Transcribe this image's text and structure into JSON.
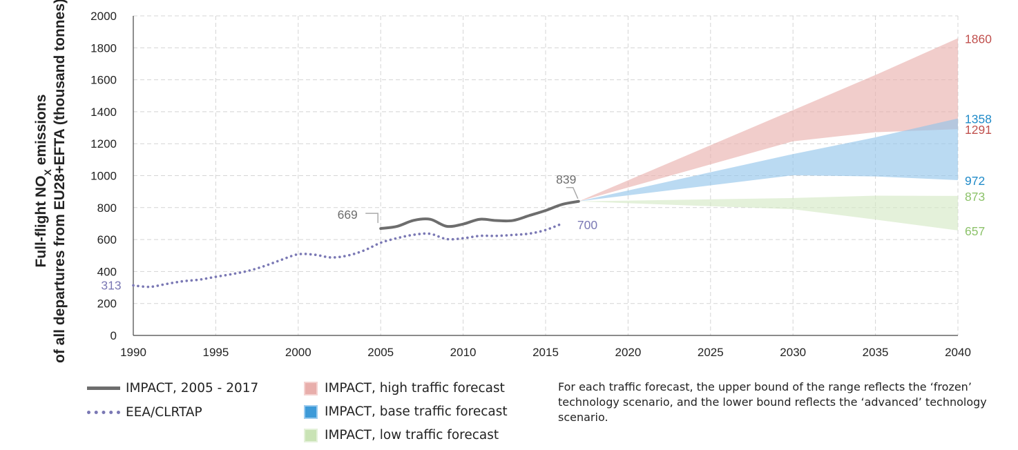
{
  "chart_data": {
    "type": "area",
    "title": "",
    "ylabel_line1": "Full-flight NO",
    "ylabel_sub": "X",
    "ylabel_line1_suffix": " emissions",
    "ylabel_line2": "of all departures from EU28+EFTA (thousand tonnes)",
    "xlim": [
      1990,
      2040
    ],
    "ylim": [
      0,
      2000
    ],
    "xticks": [
      1990,
      1995,
      2000,
      2005,
      2010,
      2015,
      2020,
      2025,
      2030,
      2035,
      2040
    ],
    "yticks": [
      0,
      200,
      400,
      600,
      800,
      1000,
      1200,
      1400,
      1600,
      1800,
      2000
    ],
    "grid": true,
    "series": [
      {
        "name": "IMPACT, 2005 - 2017",
        "kind": "solid-line",
        "color": "#6d6d6d",
        "x": [
          2005,
          2006,
          2007,
          2008,
          2009,
          2010,
          2011,
          2012,
          2013,
          2014,
          2015,
          2016,
          2017
        ],
        "y": [
          669,
          683,
          720,
          727,
          683,
          697,
          727,
          719,
          719,
          750,
          782,
          820,
          839
        ]
      },
      {
        "name": "EEA/CLRTAP",
        "kind": "dotted-line",
        "color": "#7a78b4",
        "x": [
          1990,
          1991,
          1992,
          1993,
          1994,
          1995,
          1996,
          1997,
          1998,
          1999,
          2000,
          2001,
          2002,
          2003,
          2004,
          2005,
          2006,
          2007,
          2008,
          2009,
          2010,
          2011,
          2012,
          2013,
          2014,
          2015,
          2016
        ],
        "y": [
          313,
          304,
          322,
          339,
          349,
          367,
          384,
          405,
          436,
          474,
          508,
          505,
          488,
          500,
          532,
          580,
          609,
          630,
          636,
          603,
          608,
          623,
          623,
          629,
          637,
          660,
          700
        ]
      }
    ],
    "bands": [
      {
        "name": "IMPACT, high traffic forecast",
        "color": "#e8aeab",
        "x": [
          2017,
          2030,
          2035,
          2040
        ],
        "upper": [
          839,
          1410,
          1630,
          1860
        ],
        "lower": [
          839,
          1215,
          1272,
          1291
        ]
      },
      {
        "name": "IMPACT, base traffic forecast",
        "color": "#8fc3ea",
        "x": [
          2017,
          2030,
          2035,
          2040
        ],
        "upper": [
          839,
          1135,
          1240,
          1358
        ],
        "lower": [
          839,
          1002,
          995,
          972
        ]
      },
      {
        "name": "IMPACT, low traffic forecast",
        "color": "#d3e8c3",
        "x": [
          2017,
          2030,
          2035,
          2040
        ],
        "upper": [
          839,
          860,
          875,
          873
        ],
        "lower": [
          839,
          790,
          725,
          657
        ]
      }
    ],
    "annotations": [
      {
        "text": "669",
        "x": 2005,
        "y": 669,
        "color": "#6d6d6d"
      },
      {
        "text": "839",
        "x": 2017,
        "y": 839,
        "color": "#6d6d6d"
      },
      {
        "text": "700",
        "x": 2016,
        "y": 700,
        "color": "#7a78b4"
      },
      {
        "text": "313",
        "x": 1990,
        "y": 313,
        "color": "#7a78b4"
      },
      {
        "text": "1860",
        "x": 2040,
        "y": 1860,
        "color": "#c0504d"
      },
      {
        "text": "1358",
        "x": 2040,
        "y": 1358,
        "color": "#1f8ac8"
      },
      {
        "text": "1291",
        "x": 2040,
        "y": 1291,
        "color": "#c0504d"
      },
      {
        "text": "972",
        "x": 2040,
        "y": 972,
        "color": "#1f8ac8"
      },
      {
        "text": "873",
        "x": 2040,
        "y": 873,
        "color": "#8cc26a"
      },
      {
        "text": "657",
        "x": 2040,
        "y": 657,
        "color": "#8cc26a"
      }
    ]
  },
  "legend": {
    "impact_line": "IMPACT, 2005 - 2017",
    "eea_line": "EEA/CLRTAP",
    "high": "IMPACT, high traffic forecast",
    "base": "IMPACT, base traffic forecast",
    "low": "IMPACT, low traffic forecast"
  },
  "note": "For each traffic forecast, the upper bound of the range reflects the ‘frozen’ technology scenario, and the lower bound reflects the ‘advanced’ technology scenario."
}
